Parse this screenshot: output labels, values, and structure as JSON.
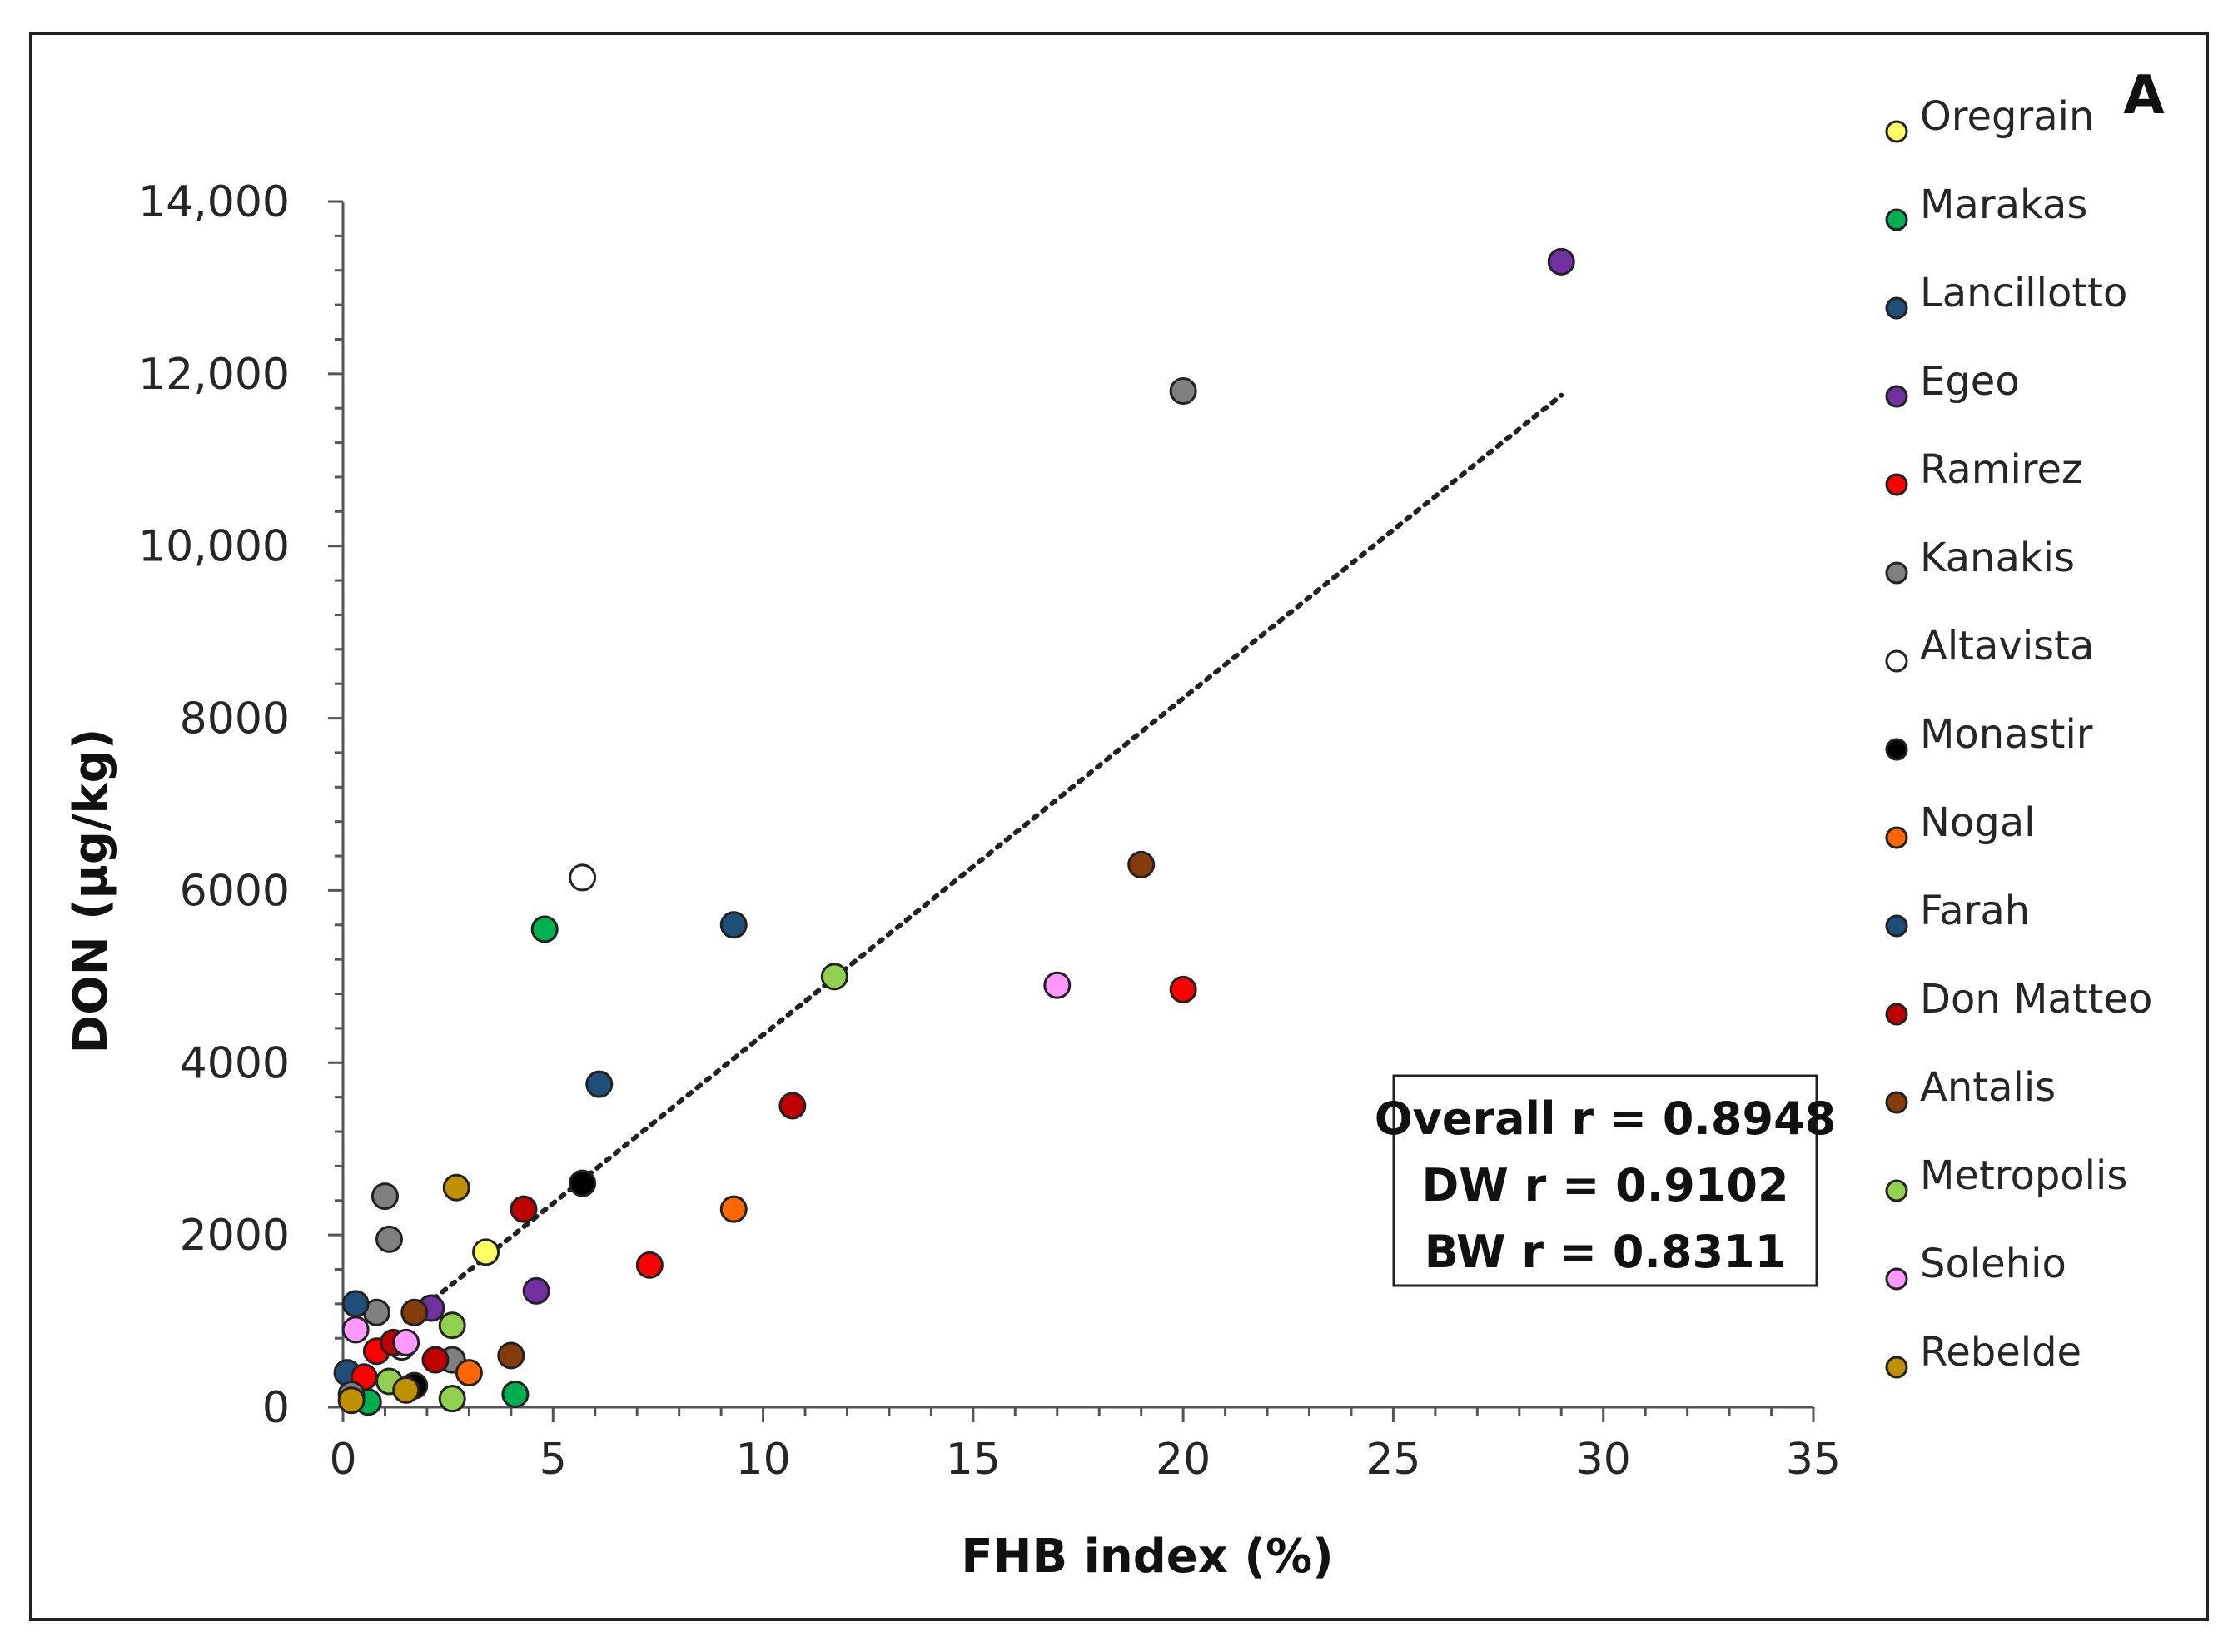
{
  "chart_data": {
    "type": "scatter",
    "panel_label": "A",
    "xlabel": "FHB index (%)",
    "ylabel": "DON (µg/kg)",
    "xlim": [
      0,
      35
    ],
    "ylim": [
      0,
      14000
    ],
    "x_ticks": [
      0,
      5,
      10,
      15,
      20,
      25,
      30,
      35
    ],
    "x_tick_labels": [
      "0",
      "5",
      "10",
      "15",
      "20",
      "25",
      "30",
      "35"
    ],
    "y_ticks": [
      0,
      2000,
      4000,
      6000,
      8000,
      10000,
      12000,
      14000
    ],
    "y_tick_labels": [
      "0",
      "2000",
      "4000",
      "6000",
      "8000",
      "10,000",
      "12,000",
      "14,000"
    ],
    "trendline": {
      "style": "dotted",
      "x": [
        1.5,
        29
      ],
      "y": [
        1000,
        11750
      ]
    },
    "stats": [
      "Overall r = 0.8948",
      "DW r = 0.9102",
      "BW r = 0.8311"
    ],
    "series": [
      {
        "name": "Oregrain",
        "color": "#ffff66",
        "points": [
          [
            3.4,
            1800
          ],
          [
            0.3,
            300
          ]
        ]
      },
      {
        "name": "Marakas",
        "color": "#00b050",
        "points": [
          [
            4.8,
            5550
          ],
          [
            4.1,
            150
          ],
          [
            0.6,
            60
          ]
        ]
      },
      {
        "name": "Lancillotto",
        "color": "#1f4e79",
        "points": [
          [
            9.3,
            5600
          ],
          [
            0.1,
            400
          ]
        ]
      },
      {
        "name": "Egeo",
        "color": "#7030a0",
        "points": [
          [
            29,
            13300
          ],
          [
            4.6,
            1350
          ],
          [
            2.1,
            1150
          ]
        ]
      },
      {
        "name": "Ramirez",
        "color": "#ff0000",
        "points": [
          [
            20,
            4850
          ],
          [
            7.3,
            1650
          ],
          [
            0.8,
            650
          ],
          [
            0.5,
            350
          ]
        ]
      },
      {
        "name": "Kanakis",
        "color": "#808080",
        "points": [
          [
            20,
            11800
          ],
          [
            1,
            2450
          ],
          [
            1.1,
            1950
          ],
          [
            0.8,
            1100
          ],
          [
            2.6,
            550
          ],
          [
            0.2,
            150
          ]
        ]
      },
      {
        "name": "Altavista",
        "color": "#ffffff",
        "points": [
          [
            5.7,
            6150
          ],
          [
            1.4,
            700
          ]
        ]
      },
      {
        "name": "Monastir",
        "color": "#000000",
        "points": [
          [
            5.7,
            2600
          ],
          [
            1.7,
            250
          ]
        ]
      },
      {
        "name": "Nogal",
        "color": "#ff6600",
        "points": [
          [
            9.3,
            2300
          ],
          [
            3,
            400
          ]
        ]
      },
      {
        "name": "Farah",
        "color": "#1f4e79",
        "points": [
          [
            6.1,
            3750
          ],
          [
            0.3,
            1200
          ]
        ]
      },
      {
        "name": "Don Matteo",
        "color": "#c00000",
        "points": [
          [
            10.7,
            3500
          ],
          [
            4.3,
            2300
          ],
          [
            2.2,
            550
          ],
          [
            1.2,
            750
          ]
        ]
      },
      {
        "name": "Antalis",
        "color": "#843c0c",
        "points": [
          [
            19,
            6300
          ],
          [
            4,
            600
          ],
          [
            1.7,
            1100
          ]
        ]
      },
      {
        "name": "Metropolis",
        "color": "#92d050",
        "points": [
          [
            11.7,
            5000
          ],
          [
            2.6,
            950
          ],
          [
            2.6,
            100
          ],
          [
            1.1,
            300
          ]
        ]
      },
      {
        "name": "Solehio",
        "color": "#ff99ff",
        "points": [
          [
            17,
            4900
          ],
          [
            0.3,
            900
          ],
          [
            1.5,
            750
          ]
        ]
      },
      {
        "name": "Rebelde",
        "color": "#bf9000",
        "points": [
          [
            2.7,
            2550
          ],
          [
            1.5,
            200
          ],
          [
            0.2,
            80
          ]
        ]
      }
    ]
  }
}
